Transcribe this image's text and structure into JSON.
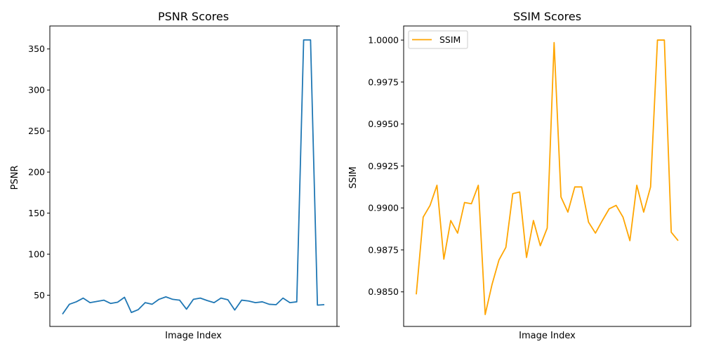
{
  "chart_data": [
    {
      "type": "line",
      "title": "PSNR Scores",
      "xlabel": "Image Index",
      "ylabel": "PSNR",
      "ylim": [
        12,
        378
      ],
      "yticks": [
        50,
        100,
        150,
        200,
        250,
        300,
        350
      ],
      "ytick_labels": [
        "50",
        "100",
        "150",
        "200",
        "250",
        "300",
        "350"
      ],
      "grid": false,
      "legend": null,
      "color": "#1f77b4",
      "series": [
        {
          "values": [
            27,
            39,
            42,
            46.5,
            41,
            42.5,
            44,
            40,
            41.5,
            47.5,
            29,
            32.5,
            41,
            39,
            45,
            48,
            45,
            44,
            33,
            45,
            46.5,
            43.5,
            41,
            46.5,
            44.5,
            32,
            44,
            43,
            41,
            42,
            39,
            38.5,
            46.5,
            41,
            42,
            361,
            361,
            38,
            38.5
          ]
        }
      ]
    },
    {
      "type": "line",
      "title": "SSIM Scores",
      "xlabel": "Image Index",
      "ylabel": "SSIM",
      "ylim": [
        0.98294,
        1.00084
      ],
      "yticks": [
        0.985,
        0.9875,
        0.99,
        0.9925,
        0.995,
        0.9975,
        1.0
      ],
      "ytick_labels": [
        "0.9850",
        "0.9875",
        "0.9900",
        "0.9925",
        "0.9950",
        "0.9975",
        "1.0000"
      ],
      "grid": false,
      "legend": "top-left",
      "color": "#ffa500",
      "series": [
        {
          "name": "SSIM",
          "values": [
            0.98485,
            0.98945,
            0.99015,
            0.99135,
            0.98695,
            0.98925,
            0.9885,
            0.99032,
            0.99025,
            0.99135,
            0.98365,
            0.98545,
            0.9869,
            0.98765,
            0.99085,
            0.99095,
            0.98705,
            0.98925,
            0.98775,
            0.9888,
            0.99985,
            0.99065,
            0.98975,
            0.99125,
            0.99125,
            0.98915,
            0.9885,
            0.98925,
            0.98995,
            0.99015,
            0.98945,
            0.98805,
            0.99135,
            0.98975,
            0.99125,
            1.0,
            1.0,
            0.98855,
            0.98805
          ]
        }
      ]
    }
  ]
}
